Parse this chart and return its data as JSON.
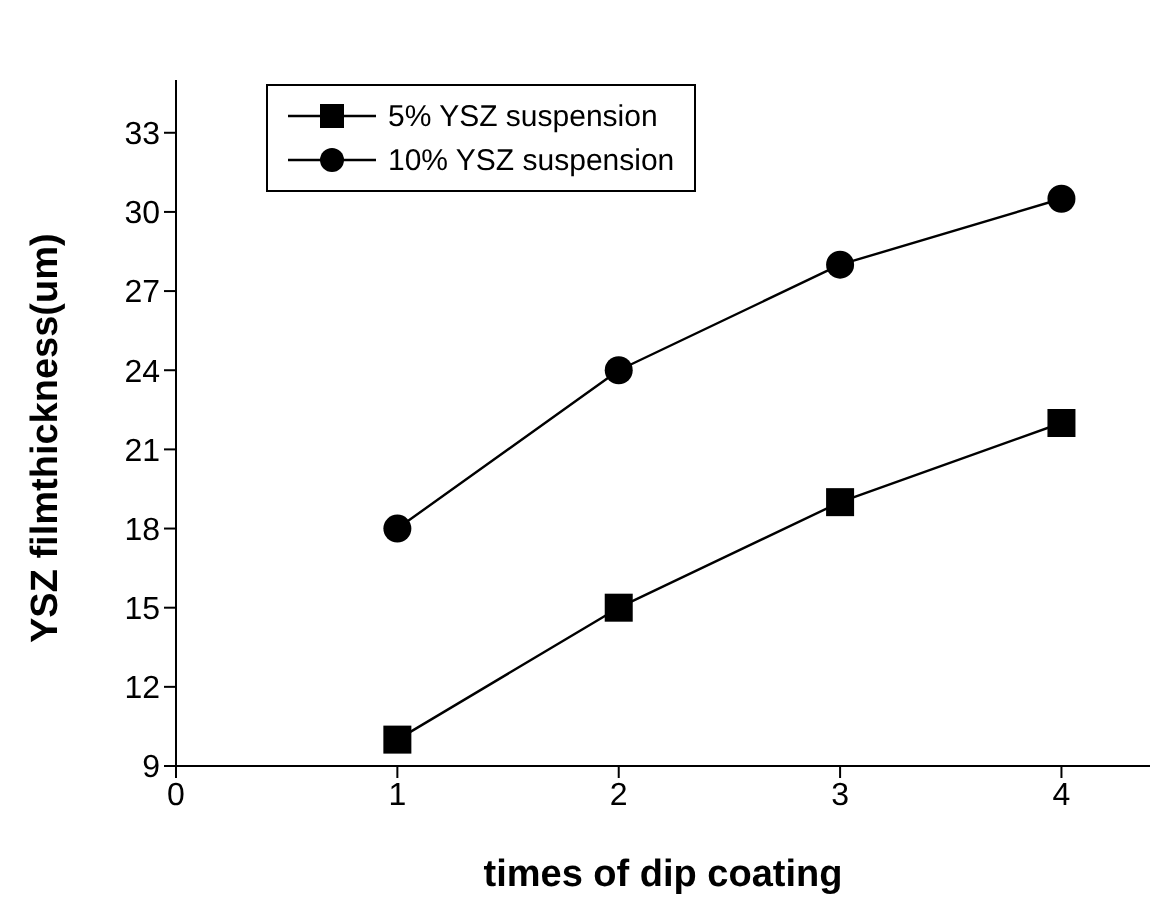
{
  "chart_data": {
    "type": "line",
    "xlabel": "times of dip coating",
    "ylabel": "YSZ filmthickness(um)",
    "x": [
      1,
      2,
      3,
      4
    ],
    "series": [
      {
        "name": "5% YSZ suspension",
        "color": "#000000",
        "marker": "square",
        "values": [
          10,
          15,
          19,
          22
        ]
      },
      {
        "name": "10% YSZ suspension",
        "color": "#000000",
        "marker": "circle",
        "values": [
          18,
          24,
          28,
          30.5
        ]
      }
    ],
    "xlim": [
      0,
      4.4
    ],
    "xticks": [
      0,
      1,
      2,
      3,
      4
    ],
    "ylim": [
      9,
      35
    ],
    "yticks": [
      9,
      12,
      15,
      18,
      21,
      24,
      27,
      30,
      33
    ],
    "grid": false,
    "legend": "top left",
    "line_style": "solid"
  }
}
